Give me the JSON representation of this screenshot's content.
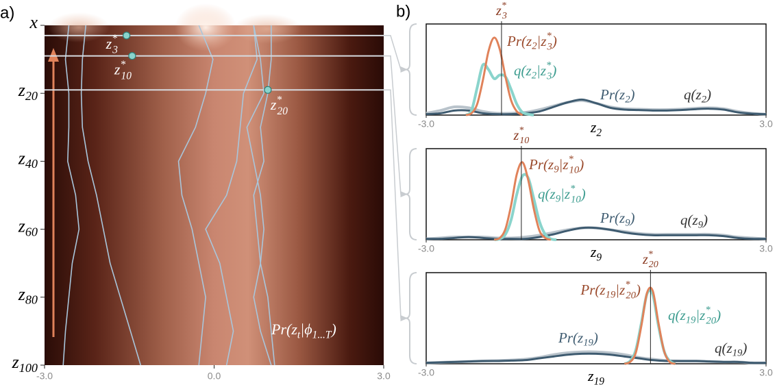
{
  "chart_data": [
    {
      "type": "trajectories",
      "panel_label": "a)",
      "label": "Pr(zt|ϕ1...T)",
      "xlim": [
        -3,
        3
      ],
      "xticks": [
        {
          "value": -3,
          "label": "-3.0"
        },
        {
          "value": 0,
          "label": "0.0"
        },
        {
          "value": 3,
          "label": "3.0"
        }
      ],
      "ylim": [
        100,
        0
      ],
      "yticks": [
        {
          "value": 0,
          "label": "x"
        },
        {
          "value": 20,
          "label": "z20"
        },
        {
          "value": 40,
          "label": "z40"
        },
        {
          "value": 60,
          "label": "z60"
        },
        {
          "value": 80,
          "label": "z80"
        },
        {
          "value": 100,
          "label": "z100"
        }
      ],
      "z": [
        0,
        10,
        20,
        30,
        40,
        50,
        60,
        70,
        80,
        90,
        100
      ],
      "series": [
        {
          "color": "#a9c6db",
          "values": [
            -2.27,
            -2.33,
            -2.35,
            -2.33,
            -2.23,
            -2.08,
            -1.96,
            -1.84,
            -1.66,
            -1.48,
            -1.3
          ]
        },
        {
          "color": "#a9c6db",
          "values": [
            -2.57,
            -2.63,
            -2.57,
            -2.57,
            -2.59,
            -2.45,
            -2.39,
            -2.51,
            -2.57,
            -2.63,
            -2.67
          ]
        },
        {
          "color": "#a9c6db",
          "values": [
            -0.27,
            -0.02,
            -0.15,
            -0.33,
            -0.63,
            -0.57,
            -0.39,
            -0.27,
            -0.15,
            -0.21,
            -0.27
          ]
        },
        {
          "color": "#a9c6db",
          "values": [
            0.7,
            0.76,
            0.52,
            0.46,
            0.4,
            0.22,
            -0.15,
            0.1,
            0.22,
            0.34,
            0.22
          ]
        },
        {
          "color": "#a9c6db",
          "values": [
            0.7,
            0.82,
            0.88,
            0.58,
            0.7,
            0.82,
            0.88,
            0.82,
            0.7,
            0.82,
            1.01
          ]
        },
        {
          "color": "#a9c6db",
          "values": [
            1.01,
            1.01,
            0.95,
            0.82,
            0.88,
            0.7,
            0.76,
            0.82,
            0.95,
            1.01,
            1.07
          ]
        }
      ],
      "points": [
        {
          "label": "z*3",
          "x": -1.55,
          "z": 3
        },
        {
          "label": "z*10",
          "x": -1.45,
          "z": 9
        },
        {
          "label": "z*20",
          "x": 0.95,
          "z": 19
        }
      ],
      "point_color": "#8ad4cc"
    },
    {
      "type": "density",
      "panel_label": "b)",
      "xlabel": "z2",
      "xlim": [
        -3,
        3
      ],
      "ylim": [
        0,
        1
      ],
      "xticks": [
        {
          "value": -3,
          "label": "-3.0"
        },
        {
          "value": 3,
          "label": "3.0"
        }
      ],
      "marker": {
        "label": "z*3",
        "value": -1.67
      },
      "series": [
        {
          "name": "q(z2)",
          "color": "#b9c3cb",
          "x": [
            -3,
            -2.75,
            -2.5,
            -2.25,
            -2,
            -1.75,
            -1.5,
            -1.25,
            -1,
            -0.75,
            -0.5,
            -0.25,
            0,
            0.25,
            0.5,
            0.75,
            1,
            1.25,
            1.5,
            1.75,
            2,
            2.25,
            2.5,
            2.75,
            3
          ],
          "values": [
            0.02,
            0.05,
            0.09,
            0.08,
            0.04,
            0.02,
            0.02,
            0.03,
            0.06,
            0.1,
            0.14,
            0.16,
            0.13,
            0.09,
            0.07,
            0.065,
            0.06,
            0.06,
            0.065,
            0.075,
            0.08,
            0.07,
            0.04,
            0.02,
            0.01
          ]
        },
        {
          "name": "Pr(z2)",
          "color": "#3e5b70",
          "x": [
            -3,
            -2.75,
            -2.5,
            -2.25,
            -2,
            -1.75,
            -1.5,
            -1.25,
            -1,
            -0.75,
            -0.5,
            -0.25,
            0,
            0.25,
            0.5,
            0.75,
            1,
            1.25,
            1.5,
            1.75,
            2,
            2.25,
            2.5,
            2.75,
            3
          ],
          "values": [
            0.01,
            0.02,
            0.05,
            0.05,
            0.02,
            0.01,
            0.01,
            0.02,
            0.04,
            0.09,
            0.14,
            0.17,
            0.13,
            0.08,
            0.06,
            0.055,
            0.05,
            0.05,
            0.055,
            0.065,
            0.07,
            0.06,
            0.03,
            0.015,
            0.01
          ]
        },
        {
          "name": "q(z2|z*3)",
          "color": "#8ad4cc",
          "x": [
            -2.3,
            -2.2,
            -2.1,
            -2,
            -1.9,
            -1.8,
            -1.7,
            -1.6,
            -1.5,
            -1.4,
            -1.3,
            -1.2,
            -1.1
          ],
          "values": [
            0,
            0.05,
            0.3,
            0.55,
            0.5,
            0.4,
            0.44,
            0.42,
            0.28,
            0.12,
            0.03,
            0.01,
            0
          ]
        },
        {
          "name": "Pr(z2|z*3)",
          "color": "#e0825a",
          "x": [
            -2.3,
            -2.2,
            -2.1,
            -2,
            -1.9,
            -1.8,
            -1.7,
            -1.6,
            -1.5,
            -1.4,
            -1.3
          ],
          "values": [
            0,
            0.02,
            0.12,
            0.38,
            0.7,
            0.85,
            0.72,
            0.42,
            0.16,
            0.04,
            0
          ]
        }
      ]
    },
    {
      "type": "density",
      "xlabel": "z9",
      "xlim": [
        -3,
        3
      ],
      "ylim": [
        0,
        1
      ],
      "xticks": [
        {
          "value": -3,
          "label": "-3.0"
        },
        {
          "value": 3,
          "label": "3.0"
        }
      ],
      "marker": {
        "label": "z*10",
        "value": -1.32
      },
      "series": [
        {
          "name": "q(z9)",
          "color": "#b9c3cb",
          "x": [
            -3,
            -2.75,
            -2.5,
            -2.25,
            -2,
            -1.75,
            -1.5,
            -1.25,
            -1,
            -0.75,
            -0.5,
            -0.25,
            0,
            0.25,
            0.5,
            0.75,
            1,
            1.25,
            1.5,
            1.75,
            2,
            2.25,
            2.5,
            2.75,
            3
          ],
          "values": [
            0.01,
            0.02,
            0.03,
            0.03,
            0.03,
            0.02,
            0.02,
            0.03,
            0.05,
            0.08,
            0.11,
            0.13,
            0.13,
            0.11,
            0.09,
            0.07,
            0.06,
            0.06,
            0.06,
            0.06,
            0.06,
            0.05,
            0.03,
            0.02,
            0.01
          ]
        },
        {
          "name": "Pr(z9)",
          "color": "#3e5b70",
          "x": [
            -3,
            -2.75,
            -2.5,
            -2.25,
            -2,
            -1.75,
            -1.5,
            -1.25,
            -1,
            -0.75,
            -0.5,
            -0.25,
            0,
            0.25,
            0.5,
            0.75,
            1,
            1.25,
            1.5,
            1.75,
            2,
            2.25,
            2.5,
            2.75,
            3
          ],
          "values": [
            0.01,
            0.01,
            0.02,
            0.03,
            0.02,
            0.01,
            0.01,
            0.01,
            0.03,
            0.06,
            0.1,
            0.13,
            0.13,
            0.11,
            0.08,
            0.06,
            0.05,
            0.05,
            0.05,
            0.05,
            0.05,
            0.04,
            0.02,
            0.01,
            0.01
          ]
        },
        {
          "name": "q(z9|z*10)",
          "color": "#8ad4cc",
          "x": [
            -1.8,
            -1.7,
            -1.6,
            -1.5,
            -1.4,
            -1.3,
            -1.2,
            -1.1,
            -1,
            -0.9,
            -0.8,
            -0.7
          ],
          "values": [
            0,
            0.01,
            0.06,
            0.22,
            0.5,
            0.7,
            0.68,
            0.45,
            0.2,
            0.06,
            0.01,
            0
          ]
        },
        {
          "name": "Pr(z9|z*10)",
          "color": "#e0825a",
          "x": [
            -1.8,
            -1.7,
            -1.6,
            -1.5,
            -1.4,
            -1.3,
            -1.2,
            -1.1,
            -1,
            -0.9,
            -0.8
          ],
          "values": [
            0,
            0.02,
            0.12,
            0.38,
            0.72,
            0.85,
            0.66,
            0.34,
            0.1,
            0.02,
            0
          ]
        }
      ]
    },
    {
      "type": "density",
      "xlabel": "z19",
      "xlim": [
        -3,
        3
      ],
      "ylim": [
        0,
        1
      ],
      "xticks": [
        {
          "value": -3,
          "label": "-3.0"
        },
        {
          "value": 3,
          "label": "3.0"
        }
      ],
      "marker": {
        "label": "z*20",
        "value": 0.96
      },
      "series": [
        {
          "name": "q(z19)",
          "color": "#b9c3cb",
          "x": [
            -3,
            -2.75,
            -2.5,
            -2.25,
            -2,
            -1.75,
            -1.5,
            -1.25,
            -1,
            -0.75,
            -0.5,
            -0.25,
            0,
            0.25,
            0.5,
            0.75,
            1,
            1.25,
            1.5,
            1.75,
            2,
            2.25,
            2.5,
            2.75,
            3
          ],
          "values": [
            0.01,
            0.015,
            0.02,
            0.025,
            0.03,
            0.035,
            0.04,
            0.05,
            0.07,
            0.1,
            0.12,
            0.13,
            0.13,
            0.12,
            0.1,
            0.07,
            0.05,
            0.035,
            0.03,
            0.03,
            0.025,
            0.02,
            0.02,
            0.01,
            0.01
          ]
        },
        {
          "name": "Pr(z19)",
          "color": "#3e5b70",
          "x": [
            -3,
            -2.75,
            -2.5,
            -2.25,
            -2,
            -1.75,
            -1.5,
            -1.25,
            -1,
            -0.75,
            -0.5,
            -0.25,
            0,
            0.25,
            0.5,
            0.75,
            1,
            1.25,
            1.5,
            1.75,
            2,
            2.25,
            2.5,
            2.75,
            3
          ],
          "values": [
            0.01,
            0.015,
            0.02,
            0.025,
            0.03,
            0.03,
            0.035,
            0.04,
            0.06,
            0.08,
            0.1,
            0.11,
            0.11,
            0.1,
            0.08,
            0.06,
            0.04,
            0.03,
            0.03,
            0.03,
            0.025,
            0.02,
            0.02,
            0.01,
            0.01
          ]
        },
        {
          "name": "q(z19|z*20)",
          "color": "#8ad4cc",
          "x": [
            0.5,
            0.6,
            0.7,
            0.8,
            0.9,
            1,
            1.1,
            1.2,
            1.3,
            1.4
          ],
          "values": [
            0,
            0.03,
            0.15,
            0.45,
            0.77,
            0.76,
            0.42,
            0.14,
            0.03,
            0
          ]
        },
        {
          "name": "Pr(z19|z*20)",
          "color": "#e0825a",
          "x": [
            0.5,
            0.6,
            0.7,
            0.8,
            0.9,
            1,
            1.1,
            1.2,
            1.3,
            1.4
          ],
          "values": [
            0,
            0.02,
            0.12,
            0.42,
            0.78,
            0.8,
            0.45,
            0.14,
            0.02,
            0
          ]
        }
      ]
    }
  ]
}
